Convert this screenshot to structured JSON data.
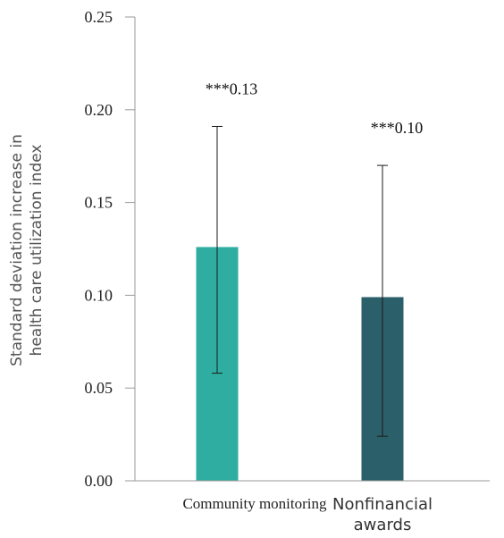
{
  "chart_data": {
    "type": "bar",
    "categories": [
      "Community monitoring",
      "Nonfinancial awards"
    ],
    "category_label_lines": [
      [
        "Community monitoring"
      ],
      [
        "Nonfinancial",
        "awards"
      ]
    ],
    "values": [
      0.126,
      0.099
    ],
    "error_bars": {
      "lower": [
        0.058,
        0.024
      ],
      "upper": [
        0.191,
        0.17
      ]
    },
    "data_labels": [
      "***0.13",
      "***0.10"
    ],
    "bar_colors": [
      "#2fada0",
      "#2b5f69"
    ],
    "ylabel_lines": [
      "Standard deviation increase in",
      "health care utilization index"
    ],
    "ylim": [
      0,
      0.25
    ],
    "yticks": [
      0.0,
      0.05,
      0.1,
      0.15,
      0.2,
      0.25
    ],
    "ytick_labels": [
      "0.00",
      "0.05",
      "0.10",
      "0.15",
      "0.20",
      "0.25"
    ],
    "grid": false,
    "legend": "none"
  }
}
